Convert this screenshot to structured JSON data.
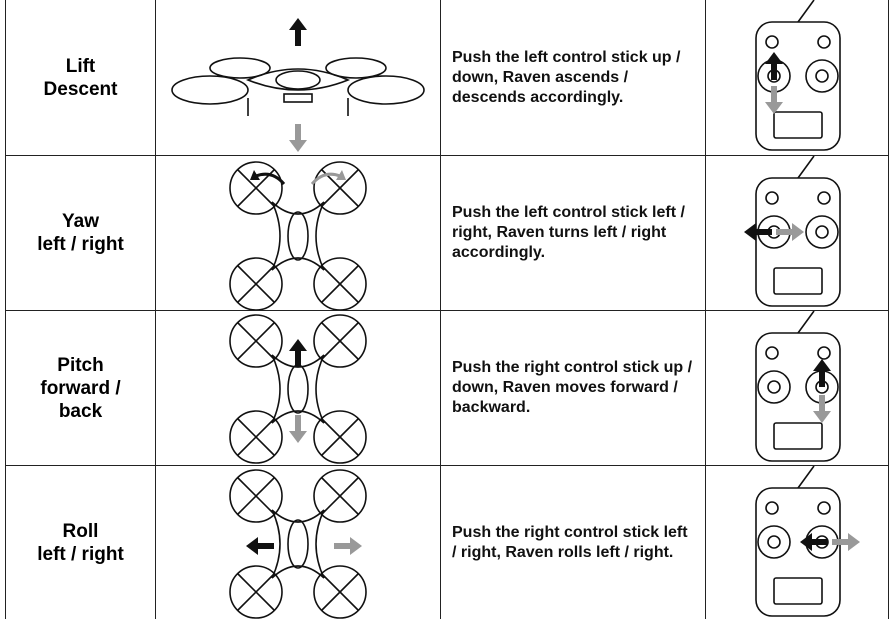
{
  "table": {
    "rows": [
      {
        "label": [
          "Lift",
          "Descent"
        ],
        "description": "Push the left control stick up / down, Raven ascends / descends accordingly."
      },
      {
        "label": [
          "Yaw",
          "left / right"
        ],
        "description": "Push the left control stick left / right, Raven turns left / right accordingly."
      },
      {
        "label": [
          "Pitch",
          "forward /",
          "back"
        ],
        "description": "Push the right control stick up / down, Raven moves forward / backward."
      },
      {
        "label": [
          "Roll",
          "left / right"
        ],
        "description": "Push the right control stick left / right, Raven rolls left / right."
      }
    ]
  }
}
